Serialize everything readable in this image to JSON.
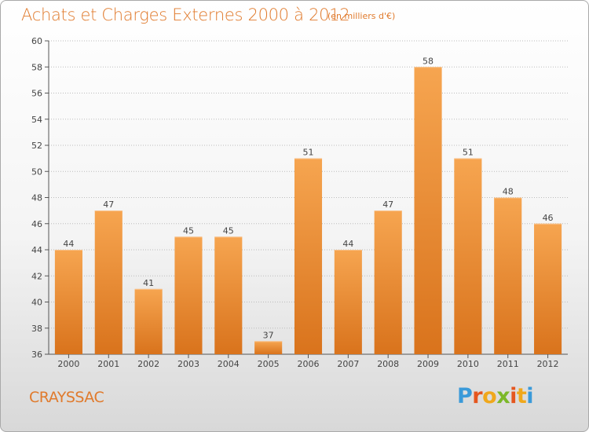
{
  "header": {
    "title": "Achats et Charges Externes 2000 à 2012",
    "subtitle": "(en milliers d'€)"
  },
  "footer": {
    "commune": "CRAYSSAC",
    "logo_text": "Proxiti"
  },
  "colors": {
    "bar_light": "#f6a550",
    "bar_dark": "#d9731c",
    "accent": "#e07a2c",
    "grid": "#bbbbbb"
  },
  "chart_data": {
    "type": "bar",
    "title": "Achats et Charges Externes 2000 à 2012",
    "subtitle": "(en milliers d'€)",
    "xlabel": "",
    "ylabel": "",
    "categories": [
      "2000",
      "2001",
      "2002",
      "2003",
      "2004",
      "2005",
      "2006",
      "2007",
      "2008",
      "2009",
      "2010",
      "2011",
      "2012"
    ],
    "values": [
      44,
      47,
      41,
      45,
      45,
      37,
      51,
      44,
      47,
      58,
      51,
      48,
      46
    ],
    "ylim": [
      36,
      60
    ],
    "yticks": [
      36,
      38,
      40,
      42,
      44,
      46,
      48,
      50,
      52,
      54,
      56,
      58,
      60
    ],
    "grid": true
  }
}
